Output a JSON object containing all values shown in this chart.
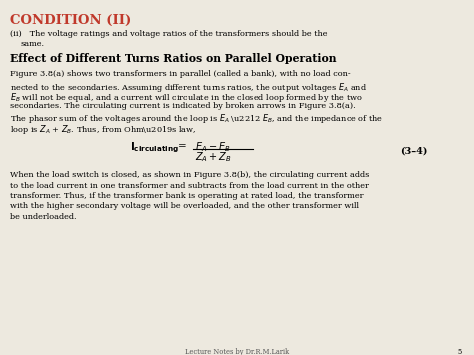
{
  "bg_color": "#ede9df",
  "title_text": "CONDITION (II)",
  "title_color": "#c0392b",
  "equation_label": "(3–4)",
  "footer": "Lecture Notes by Dr.R.M.Larik",
  "page_num": "5"
}
